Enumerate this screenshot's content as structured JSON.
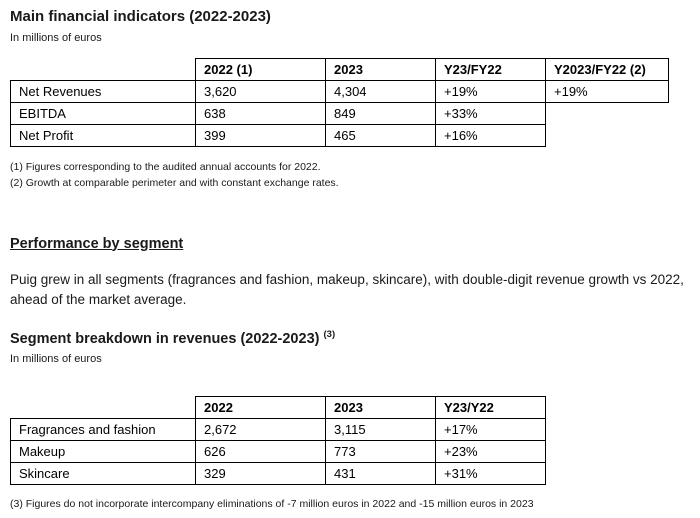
{
  "page": {
    "title": "Main financial indicators (2022-2023)",
    "units_note": "In millions of euros"
  },
  "table1": {
    "headers": [
      "",
      "2022 (1)",
      "2023",
      "Y23/FY22",
      "Y2023/FY22 (2)"
    ],
    "rows": [
      {
        "label": "Net Revenues",
        "values": [
          "3,620",
          "4,304",
          "+19%",
          "+19%"
        ]
      },
      {
        "label": "EBITDA",
        "values": [
          "638",
          "849",
          "+33%",
          ""
        ]
      },
      {
        "label": "Net Profit",
        "values": [
          "399",
          "465",
          "+16%",
          ""
        ]
      }
    ],
    "footnote_1": "(1) Figures corresponding to the audited annual accounts for 2022.",
    "footnote_2": "(2) Growth at comparable perimeter and with constant exchange rates."
  },
  "segment_section": {
    "heading": "Performance by segment",
    "paragraph": "Puig grew in all segments (fragrances and fashion, makeup, skincare), with double-digit revenue growth vs 2022, ahead of the market average.",
    "subheading": "Segment breakdown in revenues (2022-2023)",
    "subheading_superscript": "(3)",
    "units_note": "In millions of euros"
  },
  "table2": {
    "headers": [
      "",
      "2022",
      "2023",
      "Y23/Y22"
    ],
    "rows": [
      {
        "label": "Fragrances and fashion",
        "values": [
          "2,672",
          "3,115",
          "+17%"
        ]
      },
      {
        "label": "Makeup",
        "values": [
          "626",
          "773",
          "+23%"
        ]
      },
      {
        "label": "Skincare",
        "values": [
          "329",
          "431",
          "+31%"
        ]
      }
    ],
    "footnote_3": "(3) Figures do not incorporate intercompany eliminations of -7 million euros in 2022 and -15 million euros in 2023"
  }
}
